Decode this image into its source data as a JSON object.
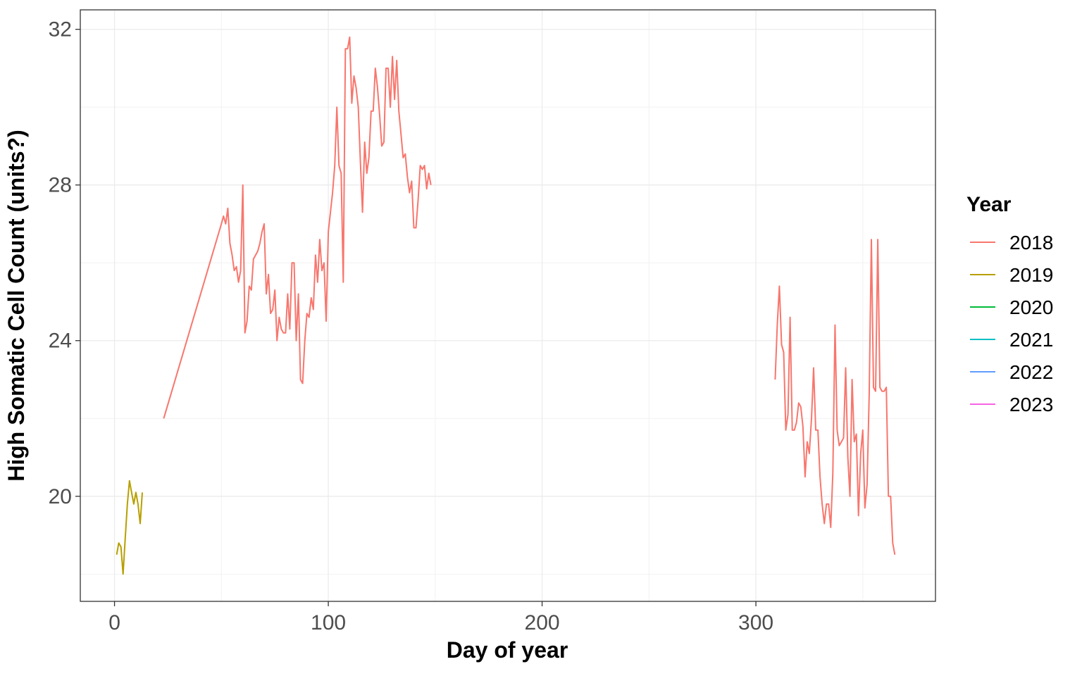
{
  "chart_data": {
    "type": "line",
    "title": "",
    "xlabel": "Day of year",
    "ylabel": "High Somatic Cell Count (units?)",
    "xlim": [
      -16,
      384
    ],
    "ylim": [
      17.3,
      32.5
    ],
    "xticks": [
      0,
      100,
      200,
      300
    ],
    "yticks": [
      20,
      24,
      28,
      32
    ],
    "grid": true,
    "legend": {
      "title": "Year",
      "placement": "right",
      "entries": [
        "2018",
        "2019",
        "2020",
        "2021",
        "2022",
        "2023"
      ]
    },
    "series": [
      {
        "name": "2018",
        "color": "#F8766D",
        "segments": [
          {
            "x": [
              23,
              50,
              51,
              52,
              53,
              54,
              55,
              56,
              57,
              58,
              59,
              60,
              61,
              62,
              63,
              64,
              65,
              66,
              67,
              68,
              69,
              70,
              71,
              72,
              73,
              74,
              75,
              76,
              77,
              78,
              79,
              80,
              81,
              82,
              83,
              84,
              85,
              86,
              87,
              88,
              89,
              90,
              91,
              92,
              93,
              94,
              95,
              96,
              97,
              98,
              99,
              100,
              101,
              102,
              103,
              104,
              105,
              106,
              107,
              108,
              109,
              110,
              111,
              112,
              113,
              114,
              115,
              116,
              117,
              118,
              119,
              120,
              121,
              122,
              123,
              124,
              125,
              126,
              127,
              128,
              129,
              130,
              131,
              132,
              133,
              134,
              135,
              136,
              137,
              138,
              139,
              140,
              141,
              142,
              143,
              144,
              145,
              146,
              147,
              148
            ],
            "y": [
              22.0,
              27.0,
              27.2,
              27.0,
              27.4,
              26.5,
              26.2,
              25.8,
              25.9,
              25.5,
              25.8,
              28.0,
              24.2,
              24.5,
              25.4,
              25.3,
              26.1,
              26.2,
              26.3,
              26.5,
              26.8,
              27.0,
              25.2,
              25.7,
              24.7,
              24.8,
              25.3,
              24.0,
              24.6,
              24.3,
              24.2,
              24.2,
              25.2,
              24.3,
              26.0,
              26.0,
              24.0,
              25.2,
              23.0,
              22.9,
              24.0,
              24.7,
              24.6,
              25.1,
              24.8,
              26.2,
              25.5,
              26.6,
              25.8,
              26.0,
              24.5,
              26.8,
              27.3,
              27.8,
              28.5,
              30.0,
              28.5,
              28.3,
              25.5,
              31.5,
              31.5,
              31.8,
              30.1,
              30.8,
              30.5,
              30.0,
              28.6,
              27.3,
              29.1,
              28.3,
              28.7,
              29.9,
              29.9,
              31.0,
              30.5,
              29.8,
              29.0,
              29.1,
              31.0,
              31.0,
              30.0,
              31.3,
              30.2,
              31.2,
              29.9,
              29.3,
              28.7,
              28.8,
              28.2,
              27.8,
              28.1,
              26.9,
              26.9,
              27.6,
              28.5,
              28.4,
              28.5,
              27.9,
              28.3,
              28.0
            ]
          },
          {
            "x": [
              309,
              310,
              311,
              312,
              313,
              314,
              315,
              316,
              317,
              318,
              319,
              320,
              321,
              322,
              323,
              324,
              325,
              326,
              327,
              328,
              329,
              330,
              331,
              332,
              333,
              334,
              335,
              336,
              337,
              338,
              339,
              340,
              341,
              342,
              343,
              344,
              345,
              346,
              347,
              348,
              349,
              350,
              351,
              352,
              353,
              354,
              355,
              356,
              357,
              358,
              359,
              360,
              361,
              362,
              363,
              364,
              365
            ],
            "y": [
              23.0,
              24.4,
              25.4,
              23.9,
              23.7,
              21.7,
              22.1,
              24.6,
              21.7,
              21.7,
              21.9,
              22.4,
              22.3,
              21.8,
              20.5,
              21.4,
              21.1,
              22.0,
              23.3,
              21.7,
              21.7,
              20.5,
              19.8,
              19.3,
              19.8,
              19.8,
              19.2,
              20.6,
              24.4,
              21.7,
              21.3,
              21.4,
              21.5,
              23.3,
              21.0,
              20.0,
              23.0,
              21.4,
              21.6,
              19.5,
              21.1,
              21.7,
              19.7,
              20.3,
              22.6,
              26.6,
              22.8,
              22.7,
              26.6,
              22.8,
              22.7,
              22.7,
              22.8,
              20.0,
              20.0,
              18.8,
              18.5
            ]
          }
        ]
      },
      {
        "name": "2019",
        "color": "#B79F00",
        "segments": [
          {
            "x": [
              1,
              2,
              3,
              4,
              5,
              6,
              7,
              8,
              9,
              10,
              11,
              12,
              13
            ],
            "y": [
              18.5,
              18.8,
              18.7,
              18.0,
              18.9,
              19.8,
              20.4,
              20.1,
              19.8,
              20.1,
              19.8,
              19.3,
              20.1
            ]
          }
        ]
      },
      {
        "name": "2020",
        "color": "#00BA38",
        "segments": []
      },
      {
        "name": "2021",
        "color": "#00BFC4",
        "segments": []
      },
      {
        "name": "2022",
        "color": "#619CFF",
        "segments": []
      },
      {
        "name": "2023",
        "color": "#F564E3",
        "segments": []
      }
    ]
  }
}
